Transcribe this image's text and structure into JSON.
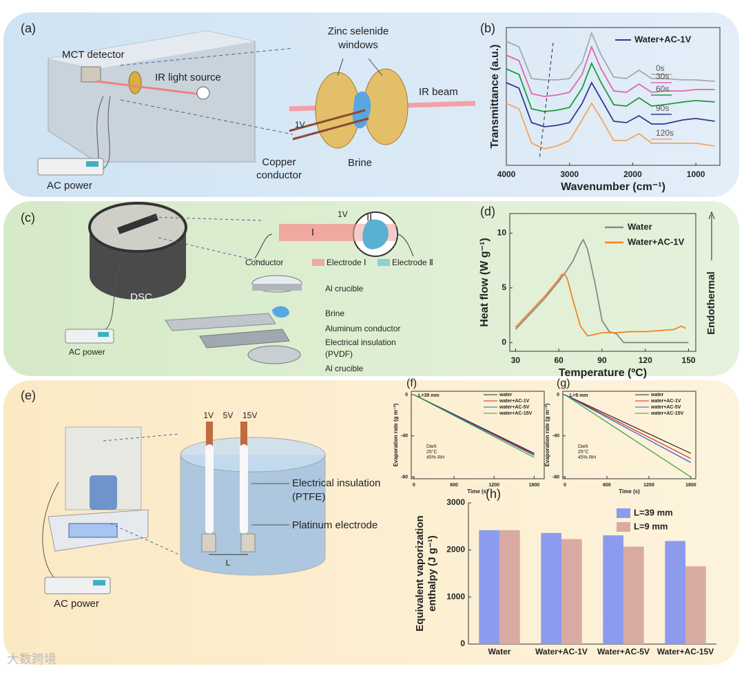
{
  "chart_data": [
    {
      "type": "line",
      "panel": "(b)",
      "y_label": "Transmittance (a.u.)",
      "x_label": "Wavenumber (cm⁻¹)",
      "legend_title": "Water+AC-1V",
      "legend_color": "#2b3a8f",
      "x": [
        4000,
        3800,
        3600,
        3400,
        3200,
        3000,
        2800,
        2650,
        2500,
        2300,
        2100,
        1900,
        1700,
        1500,
        1200,
        1000,
        700
      ],
      "xlim": [
        4000,
        620
      ],
      "xticks": [
        4000,
        3000,
        2000,
        1000
      ],
      "ylim": [
        0,
        10
      ],
      "series": [
        {
          "name": "0s",
          "color": "#a8a8a8",
          "values": [
            9.0,
            8.6,
            6.3,
            6.2,
            6.2,
            6.3,
            7.5,
            9.6,
            8.0,
            6.4,
            6.3,
            6.9,
            6.3,
            6.3,
            6.2,
            6.2,
            6.1
          ]
        },
        {
          "name": "30s",
          "color": "#e066a8",
          "values": [
            8.0,
            7.6,
            5.2,
            5.0,
            5.1,
            5.3,
            6.6,
            8.6,
            7.0,
            5.4,
            5.3,
            5.9,
            5.3,
            5.4,
            5.4,
            5.5,
            5.5
          ]
        },
        {
          "name": "60s",
          "color": "#1a9a3a",
          "values": [
            7.0,
            6.6,
            4.1,
            3.9,
            4.0,
            4.2,
            5.6,
            7.4,
            6.0,
            4.4,
            4.3,
            4.9,
            4.3,
            4.4,
            4.6,
            4.7,
            4.6
          ]
        },
        {
          "name": "90s",
          "color": "#2b3a8f",
          "values": [
            6.0,
            5.6,
            3.1,
            2.8,
            2.9,
            3.1,
            4.5,
            6.0,
            4.8,
            3.2,
            3.1,
            3.6,
            3.0,
            3.0,
            3.3,
            3.4,
            3.2
          ]
        },
        {
          "name": "120s",
          "color": "#f5a55a",
          "values": [
            4.5,
            4.1,
            1.6,
            1.2,
            1.4,
            1.8,
            3.3,
            4.5,
            3.4,
            1.8,
            1.8,
            2.3,
            1.6,
            1.6,
            1.6,
            1.6,
            1.4
          ]
        }
      ]
    },
    {
      "type": "line",
      "panel": "(d)",
      "y_label": "Heat flow (W g⁻¹)",
      "x_label": "Temperature (ºC)",
      "side_label": "Endothermal",
      "xlim": [
        26,
        155
      ],
      "xticks": [
        30,
        60,
        90,
        120,
        150
      ],
      "ylim": [
        -0.8,
        11.8
      ],
      "yticks": [
        0,
        5,
        10
      ],
      "series": [
        {
          "name": "Water",
          "color": "#888888",
          "x": [
            30,
            40,
            50,
            60,
            65,
            70,
            75,
            77,
            80,
            85,
            90,
            95,
            100,
            105,
            150
          ],
          "values": [
            1.2,
            2.6,
            4.0,
            5.6,
            6.5,
            7.5,
            9.0,
            9.4,
            8.5,
            5.5,
            2.0,
            1.0,
            0.8,
            0,
            0
          ]
        },
        {
          "name": "Water+AC-1V",
          "color": "#f58220",
          "x": [
            30,
            40,
            50,
            60,
            62,
            64,
            66,
            70,
            75,
            80,
            90,
            100,
            110,
            120,
            130,
            140,
            145,
            148
          ],
          "values": [
            1.4,
            2.8,
            4.2,
            5.8,
            6.2,
            6.3,
            5.8,
            3.8,
            1.5,
            0.6,
            0.9,
            0.9,
            1.0,
            1.0,
            1.1,
            1.2,
            1.5,
            1.3
          ]
        }
      ]
    },
    {
      "type": "line",
      "panel": "(f)",
      "y_label": "Evaporation rate (g m⁻²)",
      "x_label": "Time (s)",
      "annotations": [
        "L=39 mm",
        "Dark",
        "25°C",
        "45% RH"
      ],
      "x": [
        0,
        1800
      ],
      "xlim": [
        -40,
        1950
      ],
      "xticks": [
        0,
        600,
        1200,
        1800
      ],
      "ylim": [
        -81.7,
        3.4
      ],
      "yticks": [
        0,
        -40,
        -80
      ],
      "series": [
        {
          "name": "water",
          "color": "#222222",
          "values": [
            0,
            -57
          ]
        },
        {
          "name": "water+AC-1V",
          "color": "#e02020",
          "values": [
            0,
            -58
          ]
        },
        {
          "name": "water+AC-5V",
          "color": "#2060d0",
          "values": [
            0,
            -59
          ]
        },
        {
          "name": "water+AC-15V",
          "color": "#30a040",
          "values": [
            0,
            -61
          ]
        }
      ]
    },
    {
      "type": "line",
      "panel": "(g)",
      "y_label": "Evaporation rate (g m⁻²)",
      "x_label": "Time (s)",
      "annotations": [
        "L=9 mm",
        "Dark",
        "25°C",
        "45% RH"
      ],
      "x": [
        0,
        1800
      ],
      "xlim": [
        -30,
        1870
      ],
      "xticks": [
        0,
        600,
        1200,
        1800
      ],
      "ylim": [
        -81.7,
        3.4
      ],
      "yticks": [
        0,
        -40,
        -80
      ],
      "series": [
        {
          "name": "water",
          "color": "#222222",
          "values": [
            0,
            -57
          ]
        },
        {
          "name": "water+AC-1V",
          "color": "#e02020",
          "values": [
            0,
            -62
          ]
        },
        {
          "name": "water+AC-5V",
          "color": "#2060d0",
          "values": [
            0,
            -66
          ]
        },
        {
          "name": "water+AC-15V",
          "color": "#30a040",
          "values": [
            0,
            -80
          ]
        }
      ]
    },
    {
      "type": "bar",
      "panel": "(h)",
      "y_label": [
        "Equivalent vaporization",
        "enthalpy (J g⁻¹)"
      ],
      "categories": [
        "Water",
        "Water+AC-1V",
        "Water+AC-5V",
        "Water+AC-15V"
      ],
      "ylim": [
        0,
        3000
      ],
      "yticks": [
        0,
        1000,
        2000,
        3000
      ],
      "series": [
        {
          "name": "L=39 mm",
          "color": "#8d9bee",
          "values": [
            2420,
            2360,
            2310,
            2190
          ]
        },
        {
          "name": "L=9 mm",
          "color": "#d9aaa2",
          "values": [
            2420,
            2230,
            2070,
            1650
          ]
        }
      ]
    }
  ],
  "diagram_a": {
    "label": "(a)",
    "mct": "MCT detector",
    "ir_source": "IR light source",
    "zinc": [
      "Zinc selenide",
      "windows"
    ],
    "ir_beam": "IR beam",
    "voltage": "1V",
    "copper": [
      "Copper",
      "conductor"
    ],
    "brine": "Brine",
    "ac": "AC power"
  },
  "diagram_c": {
    "label": "(c)",
    "voltage": "1V",
    "electrode_i": "I",
    "electrode_ii": "II",
    "conductor": "Conductor",
    "legend_i": "Electrode Ⅰ",
    "legend_ii": "Electrode Ⅱ",
    "dsc": "DSC",
    "crucible_top": "Al crucible",
    "brine": "Brine",
    "al_conductor": "Aluminum conductor",
    "insulation": [
      "Electrical insulation",
      "(PVDF)"
    ],
    "crucible_bottom": "Al crucible",
    "ac": "AC power"
  },
  "diagram_e": {
    "label": "(e)",
    "voltages": [
      "1V",
      "5V",
      "15V"
    ],
    "insulation": [
      "Electrical insulation",
      "(PTFE)"
    ],
    "platinum": "Platinum electrode",
    "gap": "L",
    "ac": "AC power"
  },
  "watermark": "大数跨境"
}
